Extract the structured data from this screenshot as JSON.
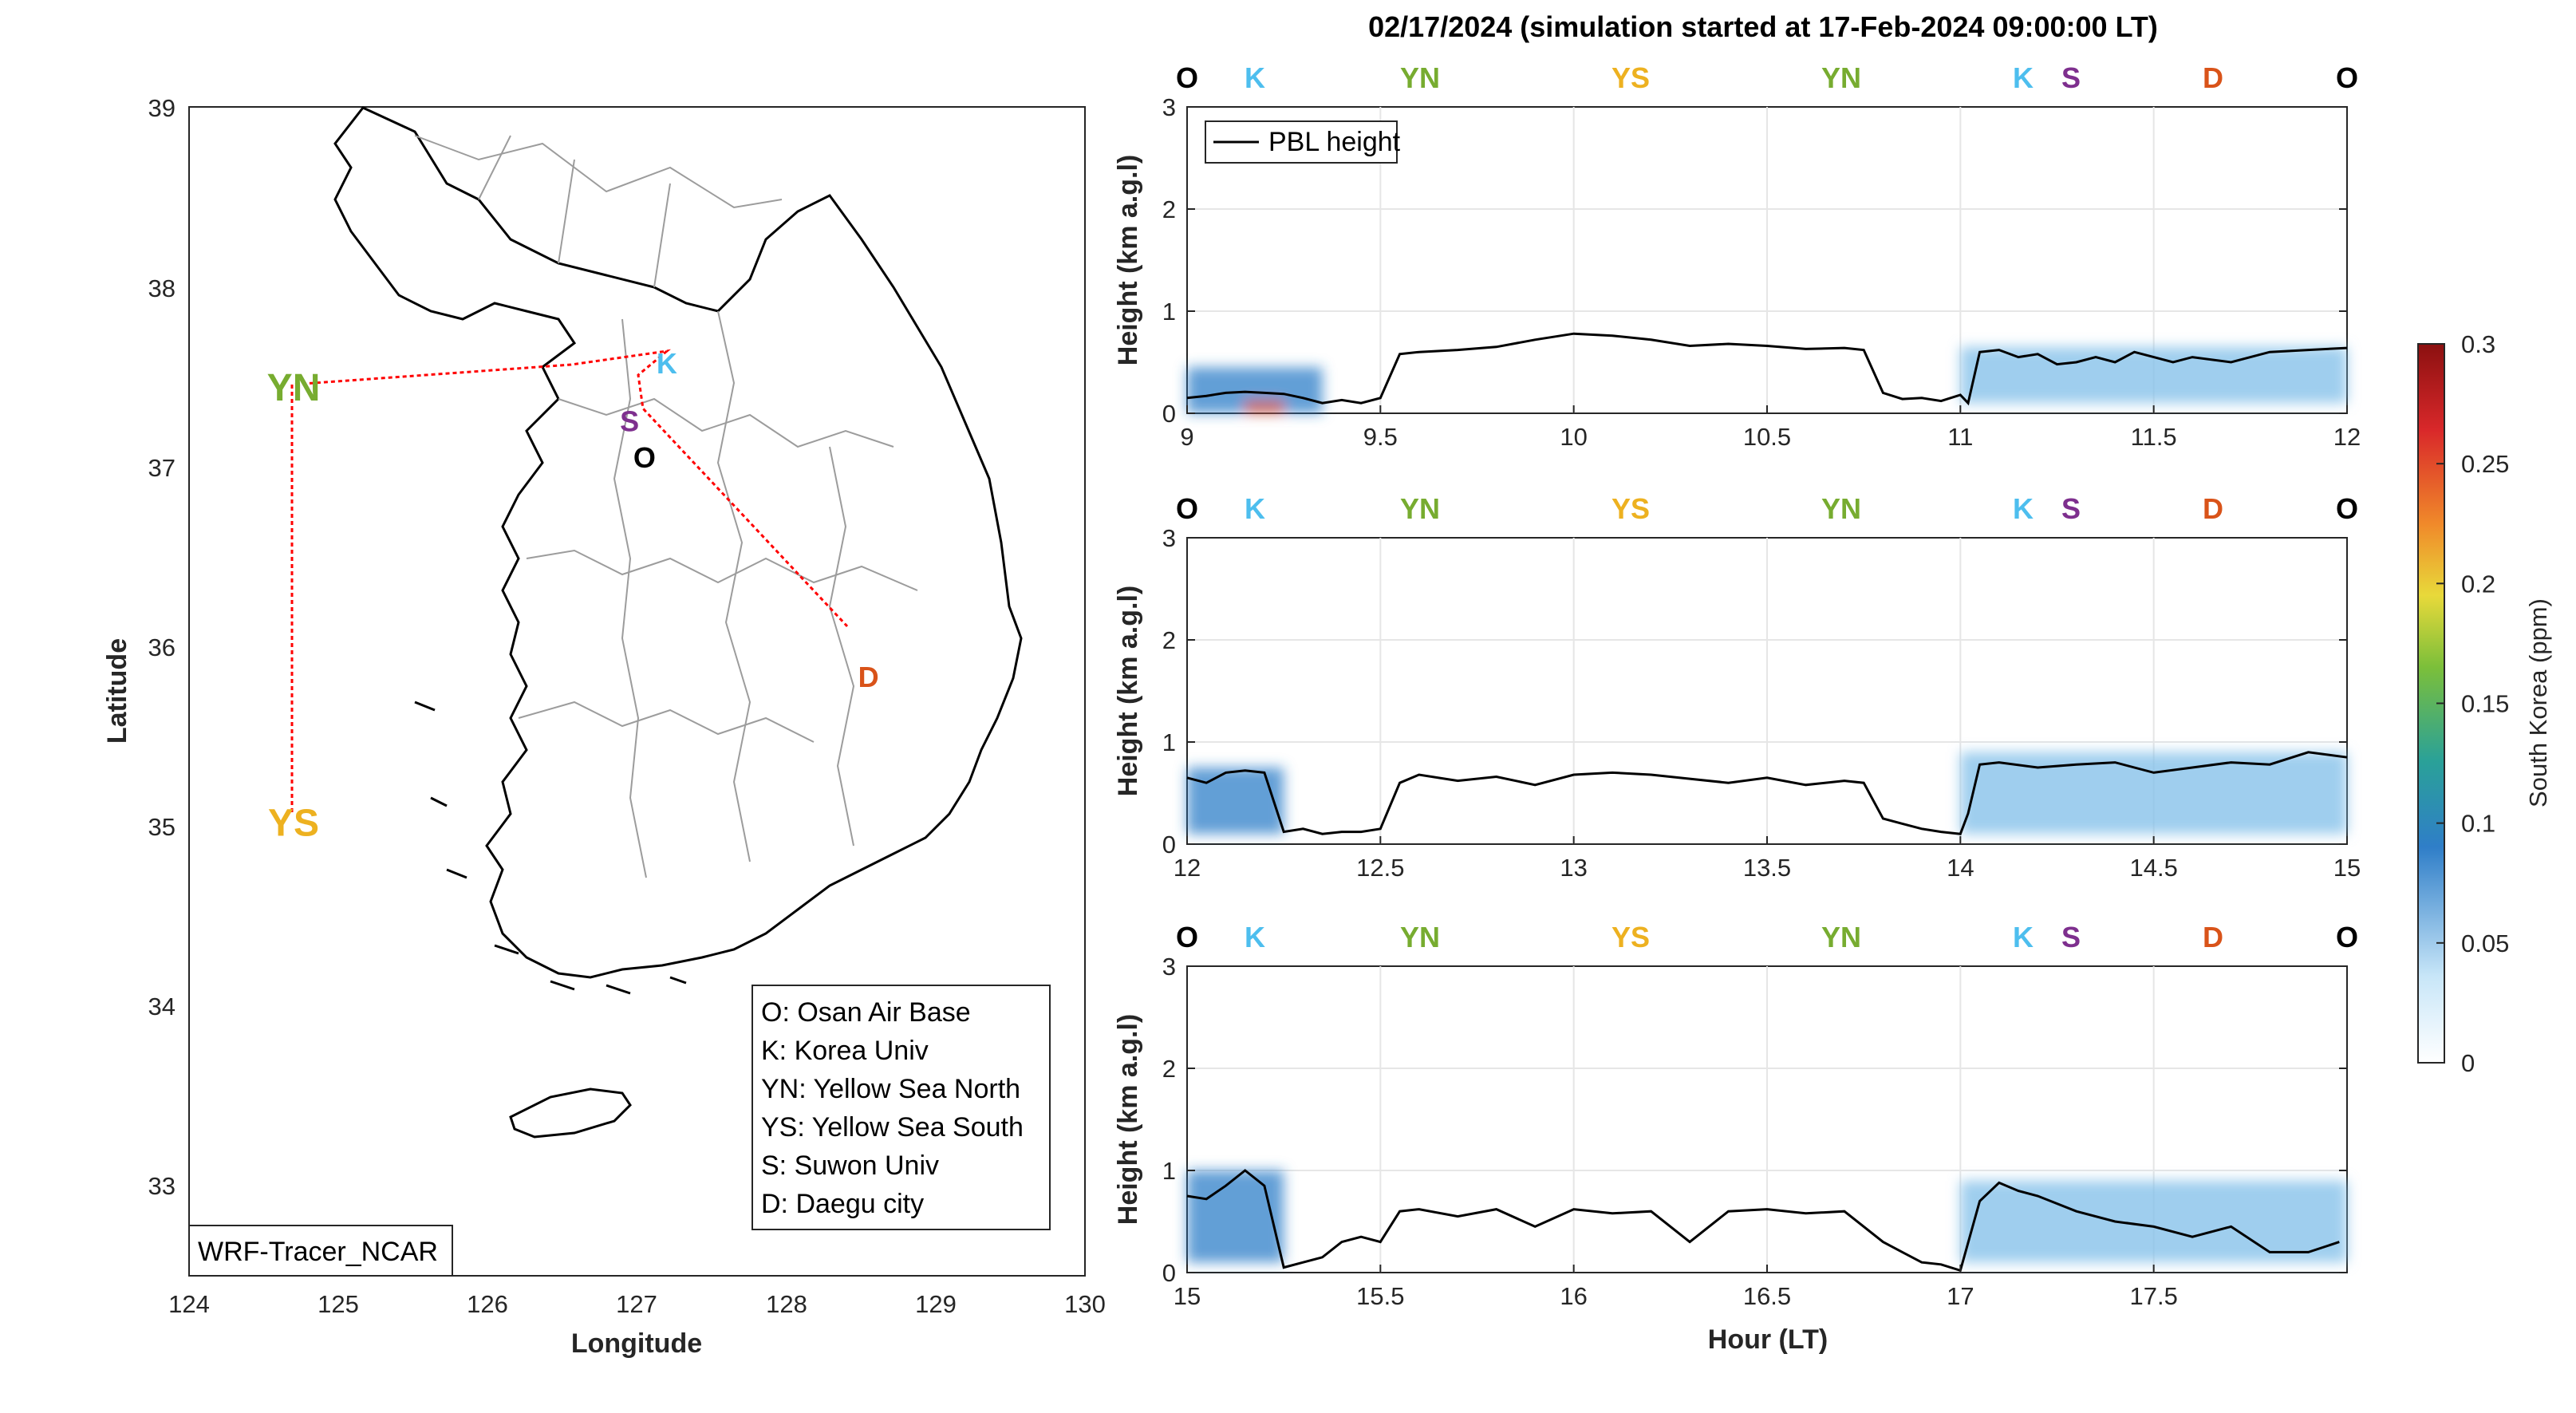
{
  "title": "02/17/2024 (simulation started at 17-Feb-2024 09:00:00 LT)",
  "map": {
    "xlabel": "Longitude",
    "ylabel": "Latitude",
    "xticks": [
      "124",
      "125",
      "126",
      "127",
      "128",
      "129",
      "130"
    ],
    "yticks": [
      "39",
      "38",
      "37",
      "36",
      "35",
      "34",
      "33"
    ],
    "watermark": "WRF-Tracer_NCAR",
    "legend": [
      "O: Osan Air Base",
      "K: Korea Univ",
      "YN: Yellow Sea North",
      "YS: Yellow Sea South",
      "S: Suwon Univ",
      "D: Daegu city"
    ],
    "points": [
      {
        "label": "YN",
        "lon": 124.7,
        "lat": 37.45,
        "color": "#77ac30"
      },
      {
        "label": "YS",
        "lon": 124.7,
        "lat": 35.05,
        "color": "#edb120"
      },
      {
        "label": "K",
        "lon": 127.2,
        "lat": 37.6,
        "color": "#4dbeee"
      },
      {
        "label": "S",
        "lon": 126.95,
        "lat": 37.28,
        "color": "#7e2f8e"
      },
      {
        "label": "O",
        "lon": 127.05,
        "lat": 37.08,
        "color": "#000000"
      },
      {
        "label": "D",
        "lon": 128.55,
        "lat": 35.87,
        "color": "#d95319"
      }
    ]
  },
  "panels": {
    "ylabel": "Height (km a.g.l)",
    "xlabel": "Hour (LT)",
    "legend_label": "PBL height",
    "yticks": [
      "3",
      "2",
      "1",
      "0"
    ],
    "markers": [
      {
        "label": "O",
        "color": "#000000"
      },
      {
        "label": "K",
        "color": "#4dbeee"
      },
      {
        "label": "YN",
        "color": "#77ac30"
      },
      {
        "label": "YS",
        "color": "#edb120"
      },
      {
        "label": "YN",
        "color": "#77ac30"
      },
      {
        "label": "K",
        "color": "#4dbeee"
      },
      {
        "label": "S",
        "color": "#7e2f8e"
      },
      {
        "label": "D",
        "color": "#d95319"
      },
      {
        "label": "O",
        "color": "#000000"
      }
    ],
    "xticks": [
      [
        "9",
        "9.5",
        "10",
        "10.5",
        "11",
        "11.5",
        "12"
      ],
      [
        "12",
        "12.5",
        "13",
        "13.5",
        "14",
        "14.5",
        "15"
      ],
      [
        "15",
        "15.5",
        "16",
        "16.5",
        "17",
        "17.5"
      ]
    ]
  },
  "colorbar": {
    "label": "South Korea (ppm)",
    "ticks": [
      "0.3",
      "0.25",
      "0.2",
      "0.15",
      "0.1",
      "0.05",
      "0"
    ]
  },
  "chart_data": [
    {
      "type": "line",
      "title": "02/17/2024 (simulation started at 17-Feb-2024 09:00:00 LT)",
      "xlabel": "",
      "ylabel": "Height (km a.g.l)",
      "xlim": [
        9,
        12
      ],
      "ylim": [
        0,
        3
      ],
      "grid": true,
      "legend_position": "top-left",
      "series": [
        {
          "name": "PBL height",
          "x": [
            9.0,
            9.05,
            9.1,
            9.15,
            9.2,
            9.25,
            9.3,
            9.35,
            9.4,
            9.45,
            9.5,
            9.55,
            9.6,
            9.7,
            9.8,
            9.9,
            10.0,
            10.1,
            10.2,
            10.3,
            10.4,
            10.5,
            10.6,
            10.7,
            10.75,
            10.8,
            10.85,
            10.9,
            10.95,
            11.0,
            11.02,
            11.05,
            11.1,
            11.15,
            11.2,
            11.25,
            11.3,
            11.35,
            11.4,
            11.45,
            11.5,
            11.55,
            11.6,
            11.7,
            11.8,
            11.9,
            12.0
          ],
          "y": [
            0.15,
            0.17,
            0.2,
            0.21,
            0.2,
            0.19,
            0.15,
            0.1,
            0.13,
            0.1,
            0.15,
            0.58,
            0.6,
            0.62,
            0.65,
            0.72,
            0.78,
            0.76,
            0.72,
            0.66,
            0.68,
            0.66,
            0.63,
            0.64,
            0.62,
            0.2,
            0.14,
            0.15,
            0.12,
            0.18,
            0.1,
            0.6,
            0.62,
            0.55,
            0.58,
            0.48,
            0.5,
            0.55,
            0.5,
            0.6,
            0.55,
            0.5,
            0.55,
            0.5,
            0.6,
            0.62,
            0.64
          ]
        }
      ],
      "concentration_blobs": [
        {
          "x0": 9.0,
          "x1": 9.35,
          "y0": 0.0,
          "y1": 0.45,
          "ppm": 0.06
        },
        {
          "x0": 9.15,
          "x1": 9.25,
          "y0": 0.0,
          "y1": 0.12,
          "ppm": 0.22
        },
        {
          "x0": 11.0,
          "x1": 12.0,
          "y0": 0.1,
          "y1": 0.65,
          "ppm": 0.05
        }
      ]
    },
    {
      "type": "line",
      "xlabel": "",
      "ylabel": "Height (km a.g.l)",
      "xlim": [
        12,
        15
      ],
      "ylim": [
        0,
        3
      ],
      "grid": true,
      "series": [
        {
          "name": "PBL height",
          "x": [
            12.0,
            12.05,
            12.1,
            12.15,
            12.2,
            12.25,
            12.3,
            12.35,
            12.4,
            12.45,
            12.5,
            12.55,
            12.6,
            12.7,
            12.8,
            12.9,
            13.0,
            13.1,
            13.2,
            13.3,
            13.4,
            13.5,
            13.6,
            13.7,
            13.75,
            13.8,
            13.85,
            13.9,
            13.95,
            14.0,
            14.02,
            14.05,
            14.1,
            14.2,
            14.3,
            14.4,
            14.5,
            14.6,
            14.7,
            14.8,
            14.9,
            15.0
          ],
          "y": [
            0.65,
            0.6,
            0.7,
            0.72,
            0.7,
            0.12,
            0.15,
            0.1,
            0.12,
            0.12,
            0.15,
            0.6,
            0.68,
            0.62,
            0.66,
            0.58,
            0.68,
            0.7,
            0.68,
            0.64,
            0.6,
            0.65,
            0.58,
            0.62,
            0.6,
            0.25,
            0.2,
            0.15,
            0.12,
            0.1,
            0.3,
            0.78,
            0.8,
            0.75,
            0.78,
            0.8,
            0.7,
            0.75,
            0.8,
            0.78,
            0.9,
            0.85
          ]
        }
      ],
      "concentration_blobs": [
        {
          "x0": 12.0,
          "x1": 12.25,
          "y0": 0.1,
          "y1": 0.75,
          "ppm": 0.07
        },
        {
          "x0": 14.0,
          "x1": 15.0,
          "y0": 0.1,
          "y1": 0.9,
          "ppm": 0.05
        }
      ]
    },
    {
      "type": "line",
      "xlabel": "Hour (LT)",
      "ylabel": "Height (km a.g.l)",
      "xlim": [
        15,
        18
      ],
      "ylim": [
        0,
        3
      ],
      "grid": true,
      "series": [
        {
          "name": "PBL height",
          "x": [
            15.0,
            15.05,
            15.1,
            15.15,
            15.2,
            15.25,
            15.3,
            15.35,
            15.4,
            15.45,
            15.5,
            15.55,
            15.6,
            15.7,
            15.8,
            15.9,
            16.0,
            16.1,
            16.2,
            16.3,
            16.4,
            16.5,
            16.6,
            16.7,
            16.8,
            16.85,
            16.9,
            16.95,
            17.0,
            17.05,
            17.1,
            17.15,
            17.2,
            17.3,
            17.4,
            17.5,
            17.6,
            17.7,
            17.8,
            17.9,
            17.98
          ],
          "y": [
            0.75,
            0.72,
            0.85,
            1.0,
            0.85,
            0.05,
            0.1,
            0.15,
            0.3,
            0.35,
            0.3,
            0.6,
            0.62,
            0.55,
            0.62,
            0.45,
            0.62,
            0.58,
            0.6,
            0.3,
            0.6,
            0.62,
            0.58,
            0.6,
            0.3,
            0.2,
            0.1,
            0.08,
            0.02,
            0.7,
            0.88,
            0.8,
            0.75,
            0.6,
            0.5,
            0.45,
            0.35,
            0.45,
            0.2,
            0.2,
            0.3
          ]
        }
      ],
      "concentration_blobs": [
        {
          "x0": 15.0,
          "x1": 15.25,
          "y0": 0.1,
          "y1": 1.0,
          "ppm": 0.06
        },
        {
          "x0": 17.0,
          "x1": 18.0,
          "y0": 0.1,
          "y1": 0.9,
          "ppm": 0.04
        }
      ]
    }
  ]
}
